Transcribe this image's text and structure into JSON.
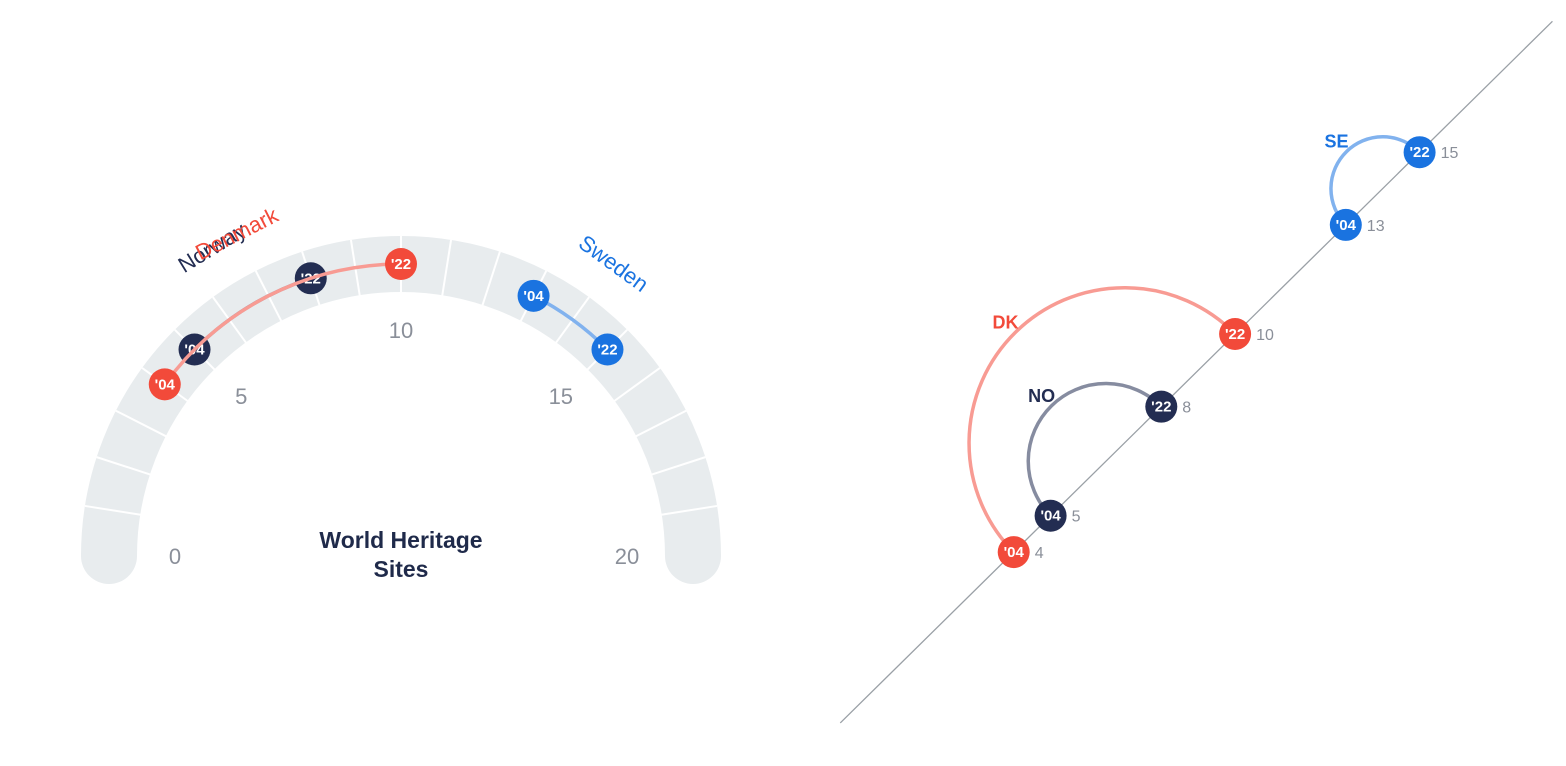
{
  "colors": {
    "norway": "#232d52",
    "denmark": "#f24a3a",
    "sweden": "#1a73e0",
    "track": "#e8ecee",
    "tick_text": "#8a8f99",
    "title": "#1f2a4a",
    "diagonal": "#9aa0a6"
  },
  "chart_data": [
    {
      "type": "gauge",
      "title_lines": [
        "World Heritage",
        "Sites"
      ],
      "range": [
        0,
        20
      ],
      "tick_labels": [
        "0",
        "5",
        "10",
        "15",
        "20"
      ],
      "series": [
        {
          "name": "Norway",
          "color": "norway",
          "points": [
            {
              "label": "'04",
              "value": 5
            },
            {
              "label": "'22",
              "value": 8
            }
          ]
        },
        {
          "name": "Denmark",
          "color": "denmark",
          "points": [
            {
              "label": "'04",
              "value": 4
            },
            {
              "label": "'22",
              "value": 10
            }
          ]
        },
        {
          "name": "Sweden",
          "color": "sweden",
          "points": [
            {
              "label": "'04",
              "value": 13
            },
            {
              "label": "'22",
              "value": 15
            }
          ]
        }
      ]
    },
    {
      "type": "scatter",
      "axis_note": "values plotted along a diagonal line",
      "series": [
        {
          "name": "NO",
          "color": "norway",
          "points": [
            {
              "label": "'04",
              "value": 5
            },
            {
              "label": "'22",
              "value": 8
            }
          ]
        },
        {
          "name": "DK",
          "color": "denmark",
          "points": [
            {
              "label": "'04",
              "value": 4
            },
            {
              "label": "'22",
              "value": 10
            }
          ]
        },
        {
          "name": "SE",
          "color": "sweden",
          "points": [
            {
              "label": "'04",
              "value": 13
            },
            {
              "label": "'22",
              "value": 15
            }
          ]
        }
      ]
    }
  ]
}
